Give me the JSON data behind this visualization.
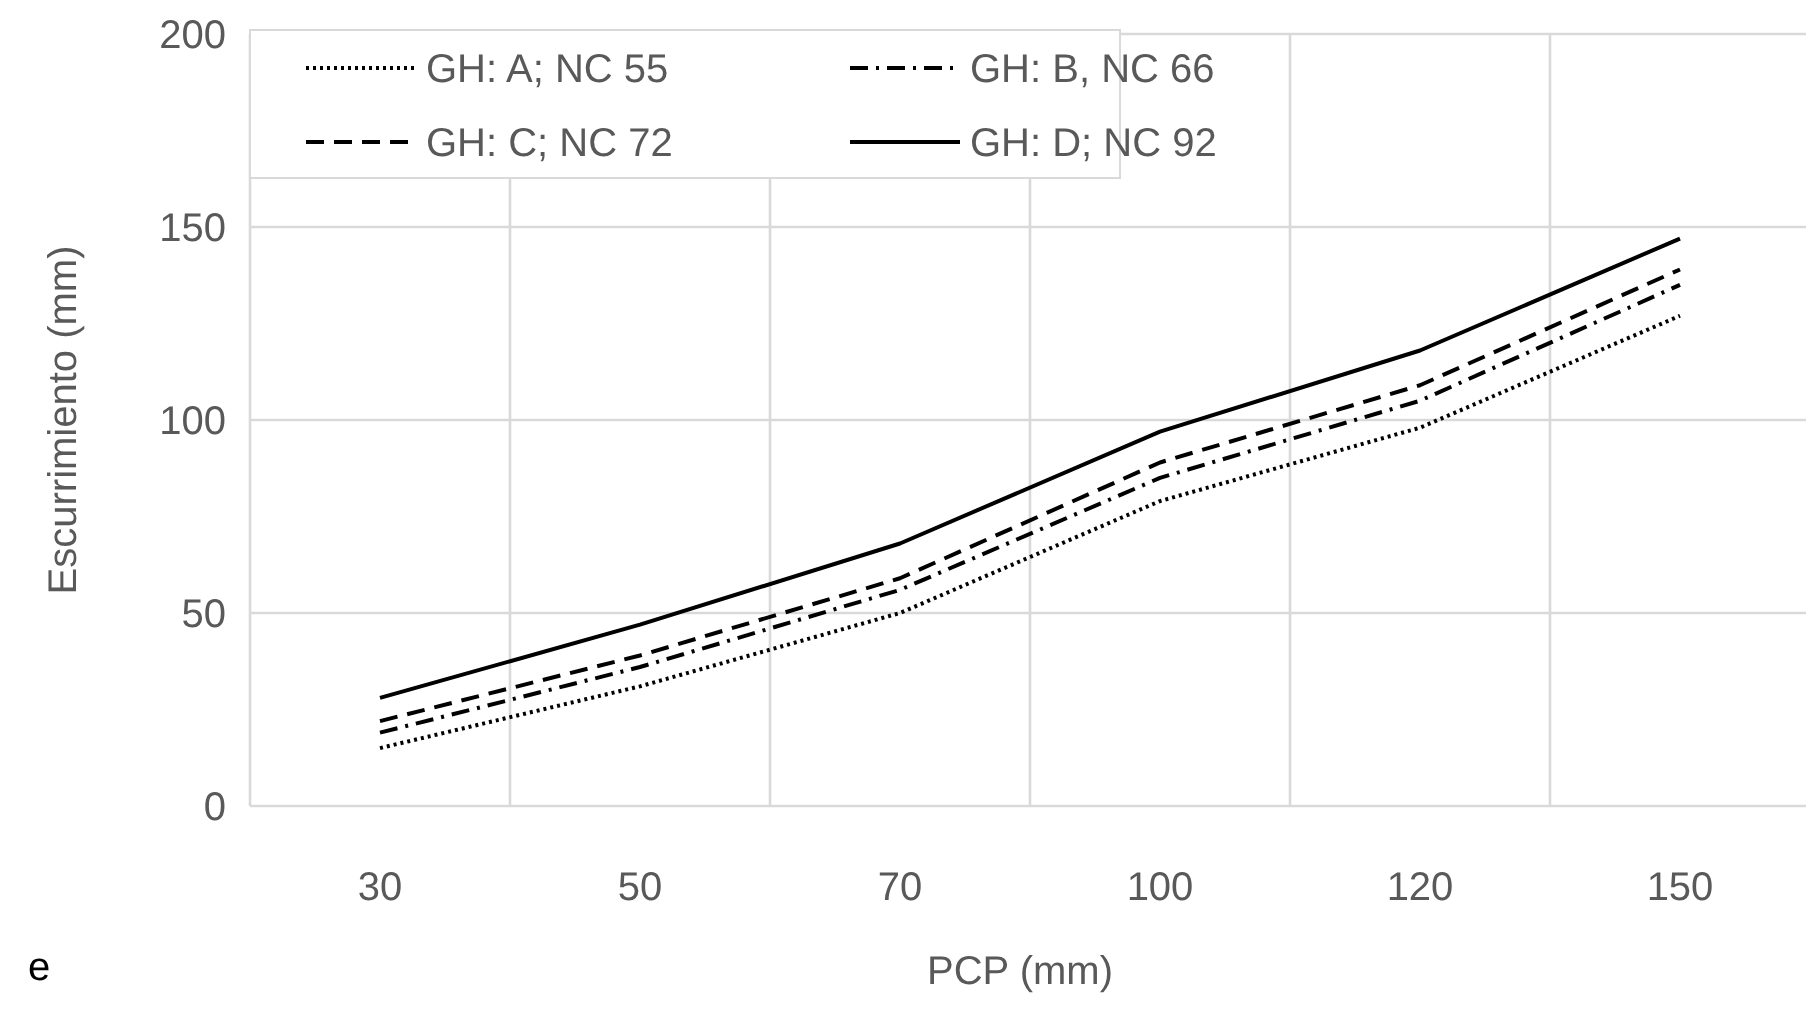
{
  "chart_data": {
    "type": "line",
    "xlabel": "PCP (mm)",
    "ylabel": "Escurrimiento (mm)",
    "categories": [
      "30",
      "50",
      "70",
      "100",
      "120",
      "150"
    ],
    "series": [
      {
        "name": "GH: A; NC 55",
        "color": "#000000",
        "line_style": "dotted",
        "values": [
          15,
          31,
          50,
          79,
          98,
          127
        ]
      },
      {
        "name": "GH: B, NC 66",
        "color": "#000000",
        "line_style": "dashdot",
        "values": [
          19,
          36,
          56,
          85,
          105,
          135
        ]
      },
      {
        "name": "GH: C; NC 72",
        "color": "#000000",
        "line_style": "dashed",
        "values": [
          22,
          39,
          59,
          89,
          109,
          139
        ]
      },
      {
        "name": "GH: D; NC 92",
        "color": "#000000",
        "line_style": "solid",
        "values": [
          28,
          47,
          68,
          97,
          118,
          147
        ]
      }
    ],
    "ylim": [
      0,
      200
    ],
    "yticks": [
      0,
      50,
      100,
      150,
      200
    ],
    "grid": true,
    "legend": "top left",
    "annotations": [
      "e"
    ]
  }
}
